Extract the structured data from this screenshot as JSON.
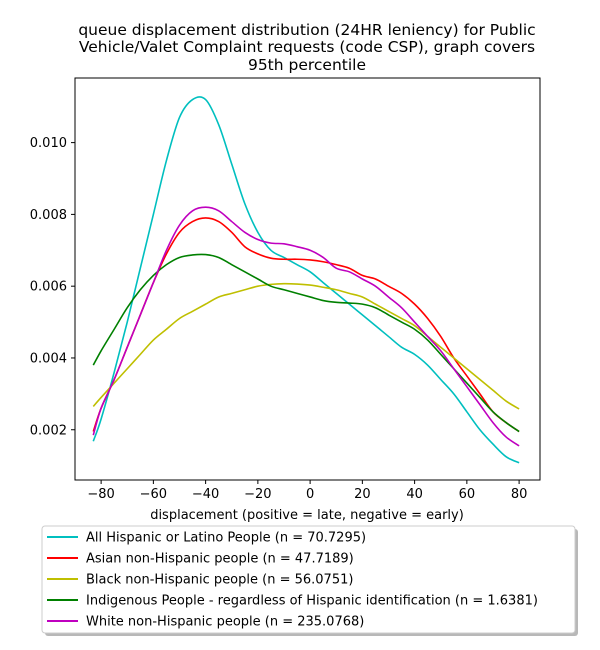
{
  "chart_data": {
    "type": "line",
    "title_lines": [
      "queue displacement distribution (24HR leniency) for Public",
      "Vehicle/Valet Complaint  requests (code CSP), graph covers",
      "95th percentile"
    ],
    "xlabel": "displacement (positive = late, negative = early)",
    "ylabel": "",
    "xlim": [
      -90,
      88
    ],
    "ylim": [
      0.0006,
      0.0118
    ],
    "x_ticks": [
      -80,
      -60,
      -40,
      -20,
      0,
      20,
      40,
      60,
      80
    ],
    "x_tick_labels": [
      "−80",
      "−60",
      "−40",
      "−20",
      "0",
      "20",
      "40",
      "60",
      "80"
    ],
    "y_ticks": [
      0.002,
      0.004,
      0.006,
      0.008,
      0.01
    ],
    "y_tick_labels": [
      "0.002",
      "0.004",
      "0.006",
      "0.008",
      "0.010"
    ],
    "grid": false,
    "legend_position": "below",
    "x": [
      -83,
      -80,
      -75,
      -70,
      -65,
      -60,
      -55,
      -50,
      -45,
      -40,
      -35,
      -30,
      -25,
      -20,
      -15,
      -10,
      -5,
      0,
      5,
      10,
      15,
      20,
      25,
      30,
      35,
      40,
      45,
      50,
      55,
      60,
      65,
      70,
      75,
      80
    ],
    "series": [
      {
        "name": "All Hispanic or Latino People (n = 70.7295)",
        "color": "#00bfbf",
        "values": [
          0.00168,
          0.0023,
          0.0036,
          0.005,
          0.0065,
          0.008,
          0.0095,
          0.0107,
          0.0112,
          0.0112,
          0.0105,
          0.0094,
          0.0083,
          0.0075,
          0.007,
          0.0068,
          0.0066,
          0.0064,
          0.0061,
          0.0058,
          0.0055,
          0.0052,
          0.0049,
          0.0046,
          0.0043,
          0.0041,
          0.0038,
          0.0034,
          0.003,
          0.0025,
          0.002,
          0.0016,
          0.00125,
          0.00108
        ]
      },
      {
        "name": "Asian non-Hispanic people (n = 47.7189)",
        "color": "#ff0000",
        "values": [
          0.00195,
          0.0026,
          0.0034,
          0.0043,
          0.0052,
          0.0061,
          0.0069,
          0.0075,
          0.0078,
          0.0079,
          0.0078,
          0.0075,
          0.0071,
          0.0069,
          0.00678,
          0.00675,
          0.00675,
          0.00673,
          0.00668,
          0.0066,
          0.0065,
          0.0063,
          0.0062,
          0.006,
          0.0058,
          0.0055,
          0.0051,
          0.0046,
          0.004,
          0.0035,
          0.003,
          0.0025,
          0.0022,
          0.00195
        ]
      },
      {
        "name": "Black non-Hispanic people (n = 56.0751)",
        "color": "#bfbf00",
        "values": [
          0.00265,
          0.0029,
          0.0033,
          0.0037,
          0.0041,
          0.0045,
          0.0048,
          0.0051,
          0.0053,
          0.0055,
          0.0057,
          0.0058,
          0.0059,
          0.006,
          0.00605,
          0.00607,
          0.00606,
          0.00603,
          0.00597,
          0.0059,
          0.0058,
          0.0057,
          0.0055,
          0.0053,
          0.0051,
          0.0049,
          0.0046,
          0.0043,
          0.004,
          0.0037,
          0.0034,
          0.0031,
          0.0028,
          0.00258
        ]
      },
      {
        "name": "Indigenous People - regardless of Hispanic identification (n = 1.6381)",
        "color": "#008000",
        "values": [
          0.0038,
          0.0042,
          0.0048,
          0.0054,
          0.0059,
          0.0063,
          0.0066,
          0.0068,
          0.00687,
          0.00688,
          0.0068,
          0.0066,
          0.0064,
          0.0062,
          0.006,
          0.0059,
          0.0058,
          0.0057,
          0.0056,
          0.00555,
          0.00553,
          0.0055,
          0.0054,
          0.0052,
          0.005,
          0.0048,
          0.0045,
          0.0041,
          0.0037,
          0.0033,
          0.0029,
          0.0025,
          0.0022,
          0.00195
        ]
      },
      {
        "name": "White non-Hispanic people (n = 235.0768)",
        "color": "#bf00bf",
        "values": [
          0.00185,
          0.0026,
          0.0034,
          0.0043,
          0.0052,
          0.0061,
          0.007,
          0.0077,
          0.0081,
          0.0082,
          0.0081,
          0.0078,
          0.0075,
          0.0073,
          0.0072,
          0.00718,
          0.0071,
          0.007,
          0.0068,
          0.0065,
          0.0064,
          0.0062,
          0.006,
          0.0057,
          0.0054,
          0.005,
          0.0046,
          0.0042,
          0.0037,
          0.0032,
          0.0027,
          0.0022,
          0.0018,
          0.00155
        ]
      }
    ]
  }
}
